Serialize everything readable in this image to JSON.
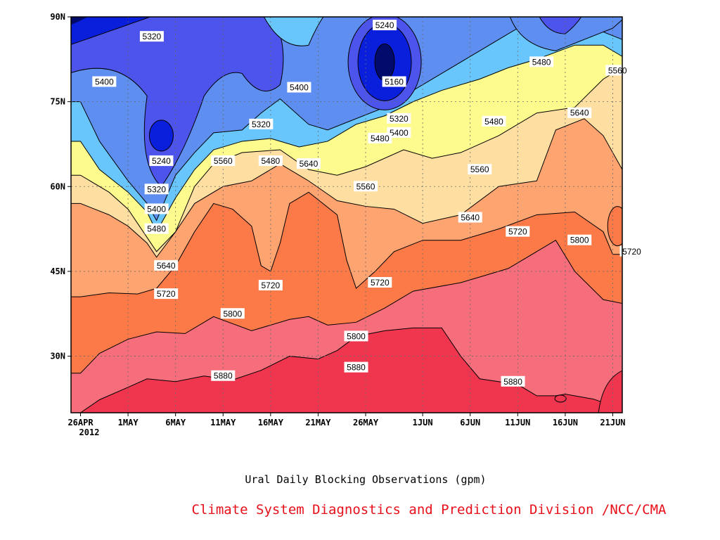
{
  "chart_data": {
    "type": "heatmap",
    "subtype": "filled-contour",
    "title": "Ural Daily Blocking Observations (gpm)",
    "credit": "Climate System Diagnostics and Prediction Division /NCC/CMA",
    "x_tick_labels": [
      "26APR",
      "1MAY",
      "6MAY",
      "11MAY",
      "16MAY",
      "21MAY",
      "26MAY",
      "1JUN",
      "6JUN",
      "11JUN",
      "16JUN",
      "21JUN"
    ],
    "x_year_label": "2012",
    "x_tick_days": [
      0,
      5,
      10,
      15,
      20,
      25,
      30,
      36,
      41,
      46,
      51,
      56
    ],
    "xlim_days": [
      -1,
      57
    ],
    "y_tick_labels": [
      "30N",
      "45N",
      "60N",
      "75N",
      "90N"
    ],
    "y_tick_values": [
      30,
      45,
      60,
      75,
      90
    ],
    "ylim": [
      20,
      90
    ],
    "grid": true,
    "contour_levels": [
      5160,
      5240,
      5320,
      5400,
      5480,
      5560,
      5640,
      5720,
      5800,
      5880
    ],
    "level_colors": {
      "below_5160": "#000b6b",
      "5160_5240": "#0a1fdc",
      "5240_5320": "#4d54ec",
      "5320_5400": "#5d8ef0",
      "5400_5480": "#68c6fc",
      "5480_5560": "#fdfb8e",
      "5560_5640": "#fedfa1",
      "5640_5720": "#fda470",
      "5720_5800": "#fc7948",
      "5800_5880": "#f66e7b",
      "above_5880": "#f0364f"
    },
    "contour_boundaries": [
      {
        "level": 5880,
        "points": [
          [
            0,
            20
          ],
          [
            2,
            22.3
          ],
          [
            5,
            24.5
          ],
          [
            7,
            26
          ],
          [
            10,
            25.5
          ],
          [
            13,
            26.5
          ],
          [
            16,
            25.8
          ],
          [
            19,
            27.5
          ],
          [
            22,
            30
          ],
          [
            25,
            29.5
          ],
          [
            27,
            31
          ],
          [
            29,
            33.5
          ],
          [
            32,
            34.5
          ],
          [
            35,
            35
          ],
          [
            38,
            35
          ],
          [
            40,
            30
          ],
          [
            42,
            26
          ],
          [
            46,
            25
          ],
          [
            48,
            23
          ],
          [
            50,
            23
          ],
          [
            51,
            23.3
          ],
          [
            54,
            22.4
          ],
          [
            58,
            20
          ]
        ]
      },
      {
        "level": 5800,
        "points": [
          [
            0,
            27
          ],
          [
            2,
            30.5
          ],
          [
            5,
            33
          ],
          [
            8,
            34.3
          ],
          [
            11,
            34
          ],
          [
            14,
            37
          ],
          [
            18,
            34.5
          ],
          [
            22,
            36.5
          ],
          [
            24,
            37
          ],
          [
            26,
            35.5
          ],
          [
            29,
            36
          ],
          [
            32,
            38.5
          ],
          [
            35,
            41.5
          ],
          [
            40,
            43
          ],
          [
            45,
            45.5
          ],
          [
            49,
            49.5
          ],
          [
            50,
            50.5
          ],
          [
            52,
            45
          ],
          [
            55,
            40
          ],
          [
            58,
            39
          ]
        ]
      },
      {
        "level": 5720,
        "points": [
          [
            0,
            40.5
          ],
          [
            3,
            41.2
          ],
          [
            6,
            41
          ],
          [
            8,
            42
          ],
          [
            10,
            46
          ],
          [
            12,
            52
          ],
          [
            14,
            57
          ],
          [
            16,
            56
          ],
          [
            18,
            53
          ],
          [
            19,
            46
          ],
          [
            20,
            45
          ],
          [
            21,
            50
          ],
          [
            22,
            57
          ],
          [
            24,
            59
          ],
          [
            27,
            55
          ],
          [
            28,
            47
          ],
          [
            29,
            42
          ],
          [
            31,
            45
          ],
          [
            33,
            48.5
          ],
          [
            36,
            50.5
          ],
          [
            40,
            50.5
          ],
          [
            44,
            52.5
          ],
          [
            48,
            55
          ],
          [
            52,
            55.5
          ],
          [
            55,
            52
          ],
          [
            56,
            48
          ],
          [
            58,
            48
          ]
        ]
      },
      {
        "level": 5640,
        "points": [
          [
            0,
            57
          ],
          [
            3,
            55
          ],
          [
            5,
            53
          ],
          [
            7,
            50
          ],
          [
            8,
            47.5
          ],
          [
            10,
            52
          ],
          [
            12,
            57
          ],
          [
            15,
            60
          ],
          [
            18,
            61
          ],
          [
            21,
            64
          ],
          [
            24,
            61
          ],
          [
            27,
            57.5
          ],
          [
            30,
            56.5
          ],
          [
            33,
            56
          ],
          [
            36,
            53.5
          ],
          [
            40,
            55
          ],
          [
            44,
            60
          ],
          [
            48,
            61
          ],
          [
            50,
            70
          ],
          [
            53,
            72
          ],
          [
            55,
            69
          ],
          [
            57,
            63
          ]
        ]
      },
      {
        "level": 5560,
        "points": [
          [
            0,
            62
          ],
          [
            3,
            59
          ],
          [
            5,
            56
          ],
          [
            7,
            51
          ],
          [
            8,
            48.5
          ],
          [
            10,
            52
          ],
          [
            12,
            60
          ],
          [
            14,
            64
          ],
          [
            17,
            66
          ],
          [
            21,
            66.5
          ],
          [
            24,
            63
          ],
          [
            27,
            62
          ],
          [
            30,
            63.5
          ],
          [
            34,
            66.5
          ],
          [
            37,
            65
          ],
          [
            40,
            66
          ],
          [
            44,
            69
          ],
          [
            48,
            73
          ],
          [
            52,
            74
          ],
          [
            55,
            79
          ],
          [
            58,
            82
          ]
        ]
      },
      {
        "level": 5480,
        "points": [
          [
            0,
            68
          ],
          [
            2,
            63
          ],
          [
            5,
            59
          ],
          [
            7,
            55.5
          ],
          [
            8,
            52
          ],
          [
            10,
            58
          ],
          [
            12,
            63
          ],
          [
            14,
            66.5
          ],
          [
            17,
            68
          ],
          [
            20,
            68.5
          ],
          [
            23,
            67
          ],
          [
            26,
            68
          ],
          [
            29,
            71
          ],
          [
            32,
            72.5
          ],
          [
            35,
            75
          ],
          [
            38,
            77
          ],
          [
            42,
            79
          ],
          [
            45,
            81
          ],
          [
            48,
            82.5
          ],
          [
            52,
            85
          ],
          [
            55,
            85
          ],
          [
            57,
            83
          ]
        ]
      },
      {
        "level": 5400,
        "points": [
          [
            0,
            75
          ],
          [
            2,
            68
          ],
          [
            5,
            61
          ],
          [
            7,
            57
          ],
          [
            8,
            54
          ],
          [
            10,
            62
          ],
          [
            12,
            66
          ],
          [
            14,
            69.5
          ],
          [
            17,
            70
          ],
          [
            19,
            73
          ],
          [
            21,
            75.5
          ],
          [
            24,
            71
          ],
          [
            26,
            70
          ],
          [
            29,
            72
          ],
          [
            32,
            74
          ],
          [
            35,
            77
          ],
          [
            38,
            80
          ],
          [
            41,
            83
          ],
          [
            44,
            86
          ],
          [
            46,
            88
          ],
          [
            49,
            88
          ],
          [
            52,
            89
          ],
          [
            54,
            88
          ],
          [
            57,
            86
          ]
        ]
      }
    ],
    "closed_features": [
      {
        "level": 5320,
        "center_day": 8.5,
        "center_lat": 69,
        "note": "low centre over 1MAY-6MAY"
      },
      {
        "level": 5240,
        "center_day": 8.5,
        "center_lat": 69
      },
      {
        "level": 5240,
        "center_day": 32,
        "center_lat": 82
      },
      {
        "level": 5160,
        "center_day": 32,
        "center_lat": 82
      },
      {
        "level": 5720,
        "center_day": 56,
        "center_lat": 53,
        "note": "small pocket near 21JUN"
      },
      {
        "level": 5880,
        "center_day": 50.5,
        "center_lat": 22.5,
        "note": "small pocket near 16JUN"
      }
    ],
    "contour_labels": [
      {
        "text": "5320",
        "day": 7.5,
        "lat": 86.5
      },
      {
        "text": "5400",
        "day": 2.5,
        "lat": 78.5
      },
      {
        "text": "5240",
        "day": 8.5,
        "lat": 64.5
      },
      {
        "text": "5320",
        "day": 8,
        "lat": 59.5
      },
      {
        "text": "5400",
        "day": 8,
        "lat": 56
      },
      {
        "text": "5480",
        "day": 8,
        "lat": 52.5
      },
      {
        "text": "5640",
        "day": 9,
        "lat": 46
      },
      {
        "text": "5720",
        "day": 9,
        "lat": 41
      },
      {
        "text": "5800",
        "day": 16,
        "lat": 37.5
      },
      {
        "text": "5880",
        "day": 15,
        "lat": 26.5
      },
      {
        "text": "5560",
        "day": 15,
        "lat": 64.5
      },
      {
        "text": "5480",
        "day": 20,
        "lat": 64.5
      },
      {
        "text": "5640",
        "day": 24,
        "lat": 64
      },
      {
        "text": "5400",
        "day": 23,
        "lat": 77.5
      },
      {
        "text": "5320",
        "day": 19,
        "lat": 71
      },
      {
        "text": "5720",
        "day": 20,
        "lat": 42.5
      },
      {
        "text": "5240",
        "day": 32,
        "lat": 88.5
      },
      {
        "text": "5160",
        "day": 33,
        "lat": 78.5
      },
      {
        "text": "5320",
        "day": 33.5,
        "lat": 72
      },
      {
        "text": "5400",
        "day": 33.5,
        "lat": 69.5
      },
      {
        "text": "5480",
        "day": 31.5,
        "lat": 68.5
      },
      {
        "text": "5560",
        "day": 30,
        "lat": 60
      },
      {
        "text": "5720",
        "day": 31.5,
        "lat": 43
      },
      {
        "text": "5800",
        "day": 29,
        "lat": 33.5
      },
      {
        "text": "5880",
        "day": 29,
        "lat": 28
      },
      {
        "text": "5480",
        "day": 48.5,
        "lat": 82
      },
      {
        "text": "5480",
        "day": 43.5,
        "lat": 71.5
      },
      {
        "text": "5560",
        "day": 42,
        "lat": 63
      },
      {
        "text": "5640",
        "day": 41,
        "lat": 54.5
      },
      {
        "text": "5720",
        "day": 46,
        "lat": 52
      },
      {
        "text": "5880",
        "day": 45.5,
        "lat": 25.5
      },
      {
        "text": "5640",
        "day": 52.5,
        "lat": 73
      },
      {
        "text": "5560",
        "day": 56.5,
        "lat": 80.5
      },
      {
        "text": "5800",
        "day": 52.5,
        "lat": 50.5
      },
      {
        "text": "5720",
        "day": 58,
        "lat": 48.5
      }
    ]
  }
}
